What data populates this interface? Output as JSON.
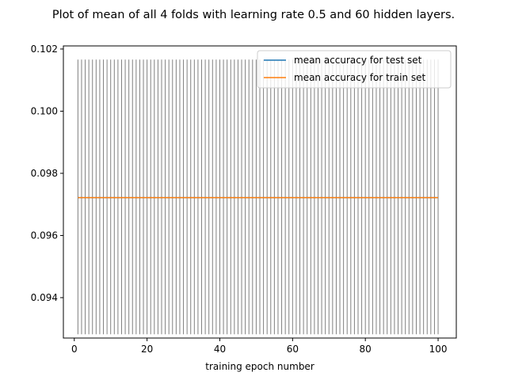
{
  "chart_data": {
    "type": "line",
    "title": "Plot of mean of all 4 folds with learning rate 0.5 and 60 hidden layers.",
    "xlabel": "training epoch number",
    "ylabel": "",
    "xlim": [
      -3,
      105
    ],
    "ylim": [
      0.0927,
      0.1021
    ],
    "x_ticks": [
      0,
      20,
      40,
      60,
      80,
      100
    ],
    "y_ticks": [
      0.094,
      0.096,
      0.098,
      0.1,
      0.102
    ],
    "x_tick_labels": [
      "0",
      "20",
      "40",
      "60",
      "80",
      "100"
    ],
    "y_tick_labels": [
      "0.094",
      "0.096",
      "0.098",
      "0.100",
      "0.102"
    ],
    "epochs": {
      "start": 1,
      "end": 100,
      "step": 1
    },
    "series": [
      {
        "name": "mean accuracy for test set",
        "color": "#1f77b4",
        "value": 0.09722
      },
      {
        "name": "mean accuracy for train set",
        "color": "#ff7f0e",
        "value": 0.09722
      }
    ],
    "error_bars": {
      "lower": 0.09282,
      "upper": 0.10166,
      "color": "#808080"
    },
    "legend": "top-right",
    "grid": false
  }
}
